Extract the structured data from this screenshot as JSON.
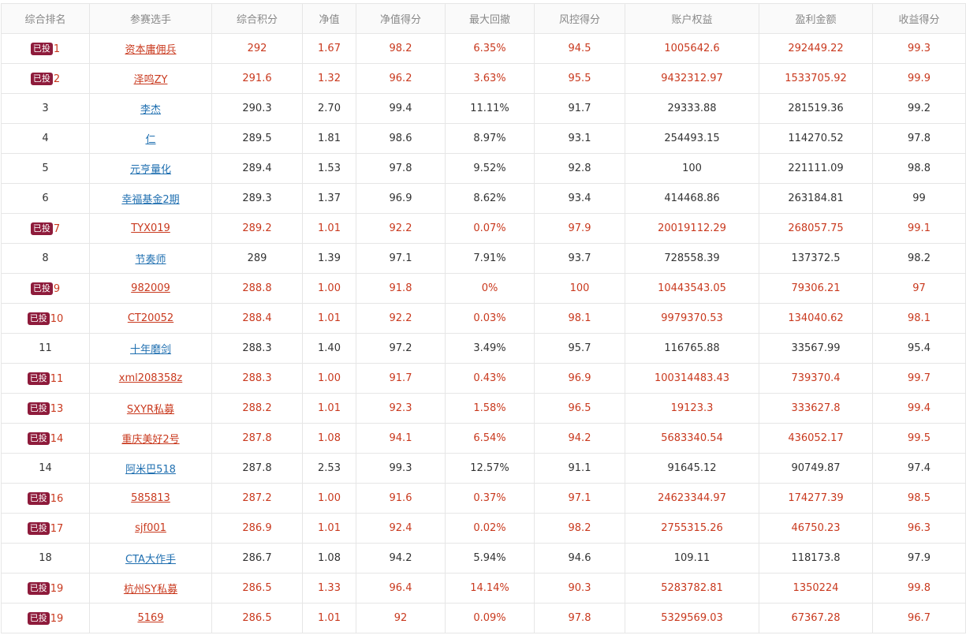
{
  "header": [
    "综合排名",
    "参赛选手",
    "综合积分",
    "净值",
    "净值得分",
    "最大回撤",
    "风控得分",
    "账户权益",
    "盈利金额",
    "收益得分"
  ],
  "badge_label": "已投",
  "rows": [
    {
      "rank": "1",
      "invested": true,
      "name": "资本庸佣兵",
      "score": "292",
      "nav": "1.67",
      "nav_score": "98.2",
      "max_drawdown": "6.35%",
      "risk_score": "94.5",
      "equity": "1005642.6",
      "profit": "292449.22",
      "return_score": "99.3"
    },
    {
      "rank": "2",
      "invested": true,
      "name": "泽鸣ZY",
      "score": "291.6",
      "nav": "1.32",
      "nav_score": "96.2",
      "max_drawdown": "3.63%",
      "risk_score": "95.5",
      "equity": "9432312.97",
      "profit": "1533705.92",
      "return_score": "99.9"
    },
    {
      "rank": "3",
      "invested": false,
      "name": "李杰",
      "score": "290.3",
      "nav": "2.70",
      "nav_score": "99.4",
      "max_drawdown": "11.11%",
      "risk_score": "91.7",
      "equity": "29333.88",
      "profit": "281519.36",
      "return_score": "99.2"
    },
    {
      "rank": "4",
      "invested": false,
      "name": "仁",
      "score": "289.5",
      "nav": "1.81",
      "nav_score": "98.6",
      "max_drawdown": "8.97%",
      "risk_score": "93.1",
      "equity": "254493.15",
      "profit": "114270.52",
      "return_score": "97.8"
    },
    {
      "rank": "5",
      "invested": false,
      "name": "元亨量化",
      "score": "289.4",
      "nav": "1.53",
      "nav_score": "97.8",
      "max_drawdown": "9.52%",
      "risk_score": "92.8",
      "equity": "100",
      "profit": "221111.09",
      "return_score": "98.8"
    },
    {
      "rank": "6",
      "invested": false,
      "name": "幸福基金2期",
      "score": "289.3",
      "nav": "1.37",
      "nav_score": "96.9",
      "max_drawdown": "8.62%",
      "risk_score": "93.4",
      "equity": "414468.86",
      "profit": "263184.81",
      "return_score": "99"
    },
    {
      "rank": "7",
      "invested": true,
      "name": "TYX019",
      "score": "289.2",
      "nav": "1.01",
      "nav_score": "92.2",
      "max_drawdown": "0.07%",
      "risk_score": "97.9",
      "equity": "20019112.29",
      "profit": "268057.75",
      "return_score": "99.1"
    },
    {
      "rank": "8",
      "invested": false,
      "name": "节奏师",
      "score": "289",
      "nav": "1.39",
      "nav_score": "97.1",
      "max_drawdown": "7.91%",
      "risk_score": "93.7",
      "equity": "728558.39",
      "profit": "137372.5",
      "return_score": "98.2"
    },
    {
      "rank": "9",
      "invested": true,
      "name": "982009",
      "score": "288.8",
      "nav": "1.00",
      "nav_score": "91.8",
      "max_drawdown": "0%",
      "risk_score": "100",
      "equity": "10443543.05",
      "profit": "79306.21",
      "return_score": "97"
    },
    {
      "rank": "10",
      "invested": true,
      "name": "CT20052",
      "score": "288.4",
      "nav": "1.01",
      "nav_score": "92.2",
      "max_drawdown": "0.03%",
      "risk_score": "98.1",
      "equity": "9979370.53",
      "profit": "134040.62",
      "return_score": "98.1"
    },
    {
      "rank": "11",
      "invested": false,
      "name": "十年磨剑",
      "score": "288.3",
      "nav": "1.40",
      "nav_score": "97.2",
      "max_drawdown": "3.49%",
      "risk_score": "95.7",
      "equity": "116765.88",
      "profit": "33567.99",
      "return_score": "95.4"
    },
    {
      "rank": "11",
      "invested": true,
      "name": "xml208358z",
      "score": "288.3",
      "nav": "1.00",
      "nav_score": "91.7",
      "max_drawdown": "0.43%",
      "risk_score": "96.9",
      "equity": "100314483.43",
      "profit": "739370.4",
      "return_score": "99.7"
    },
    {
      "rank": "13",
      "invested": true,
      "name": "SXYR私募",
      "score": "288.2",
      "nav": "1.01",
      "nav_score": "92.3",
      "max_drawdown": "1.58%",
      "risk_score": "96.5",
      "equity": "19123.3",
      "profit": "333627.8",
      "return_score": "99.4"
    },
    {
      "rank": "14",
      "invested": true,
      "name": "重庆美好2号",
      "score": "287.8",
      "nav": "1.08",
      "nav_score": "94.1",
      "max_drawdown": "6.54%",
      "risk_score": "94.2",
      "equity": "5683340.54",
      "profit": "436052.17",
      "return_score": "99.5"
    },
    {
      "rank": "14",
      "invested": false,
      "name": "阿米巴518",
      "score": "287.8",
      "nav": "2.53",
      "nav_score": "99.3",
      "max_drawdown": "12.57%",
      "risk_score": "91.1",
      "equity": "91645.12",
      "profit": "90749.87",
      "return_score": "97.4"
    },
    {
      "rank": "16",
      "invested": true,
      "name": "585813",
      "score": "287.2",
      "nav": "1.00",
      "nav_score": "91.6",
      "max_drawdown": "0.37%",
      "risk_score": "97.1",
      "equity": "24623344.97",
      "profit": "174277.39",
      "return_score": "98.5"
    },
    {
      "rank": "17",
      "invested": true,
      "name": "sjf001",
      "score": "286.9",
      "nav": "1.01",
      "nav_score": "92.4",
      "max_drawdown": "0.02%",
      "risk_score": "98.2",
      "equity": "2755315.26",
      "profit": "46750.23",
      "return_score": "96.3"
    },
    {
      "rank": "18",
      "invested": false,
      "name": "CTA大作手",
      "score": "286.7",
      "nav": "1.08",
      "nav_score": "94.2",
      "max_drawdown": "5.94%",
      "risk_score": "94.6",
      "equity": "109.11",
      "profit": "118173.8",
      "return_score": "97.9"
    },
    {
      "rank": "19",
      "invested": true,
      "name": "杭州SY私募",
      "score": "286.5",
      "nav": "1.33",
      "nav_score": "96.4",
      "max_drawdown": "14.14%",
      "risk_score": "90.3",
      "equity": "5283782.81",
      "profit": "1350224",
      "return_score": "99.8"
    },
    {
      "rank": "19",
      "invested": true,
      "name": "5169",
      "score": "286.5",
      "nav": "1.01",
      "nav_score": "92",
      "max_drawdown": "0.09%",
      "risk_score": "97.8",
      "equity": "5329569.03",
      "profit": "67367.28",
      "return_score": "96.7"
    }
  ]
}
